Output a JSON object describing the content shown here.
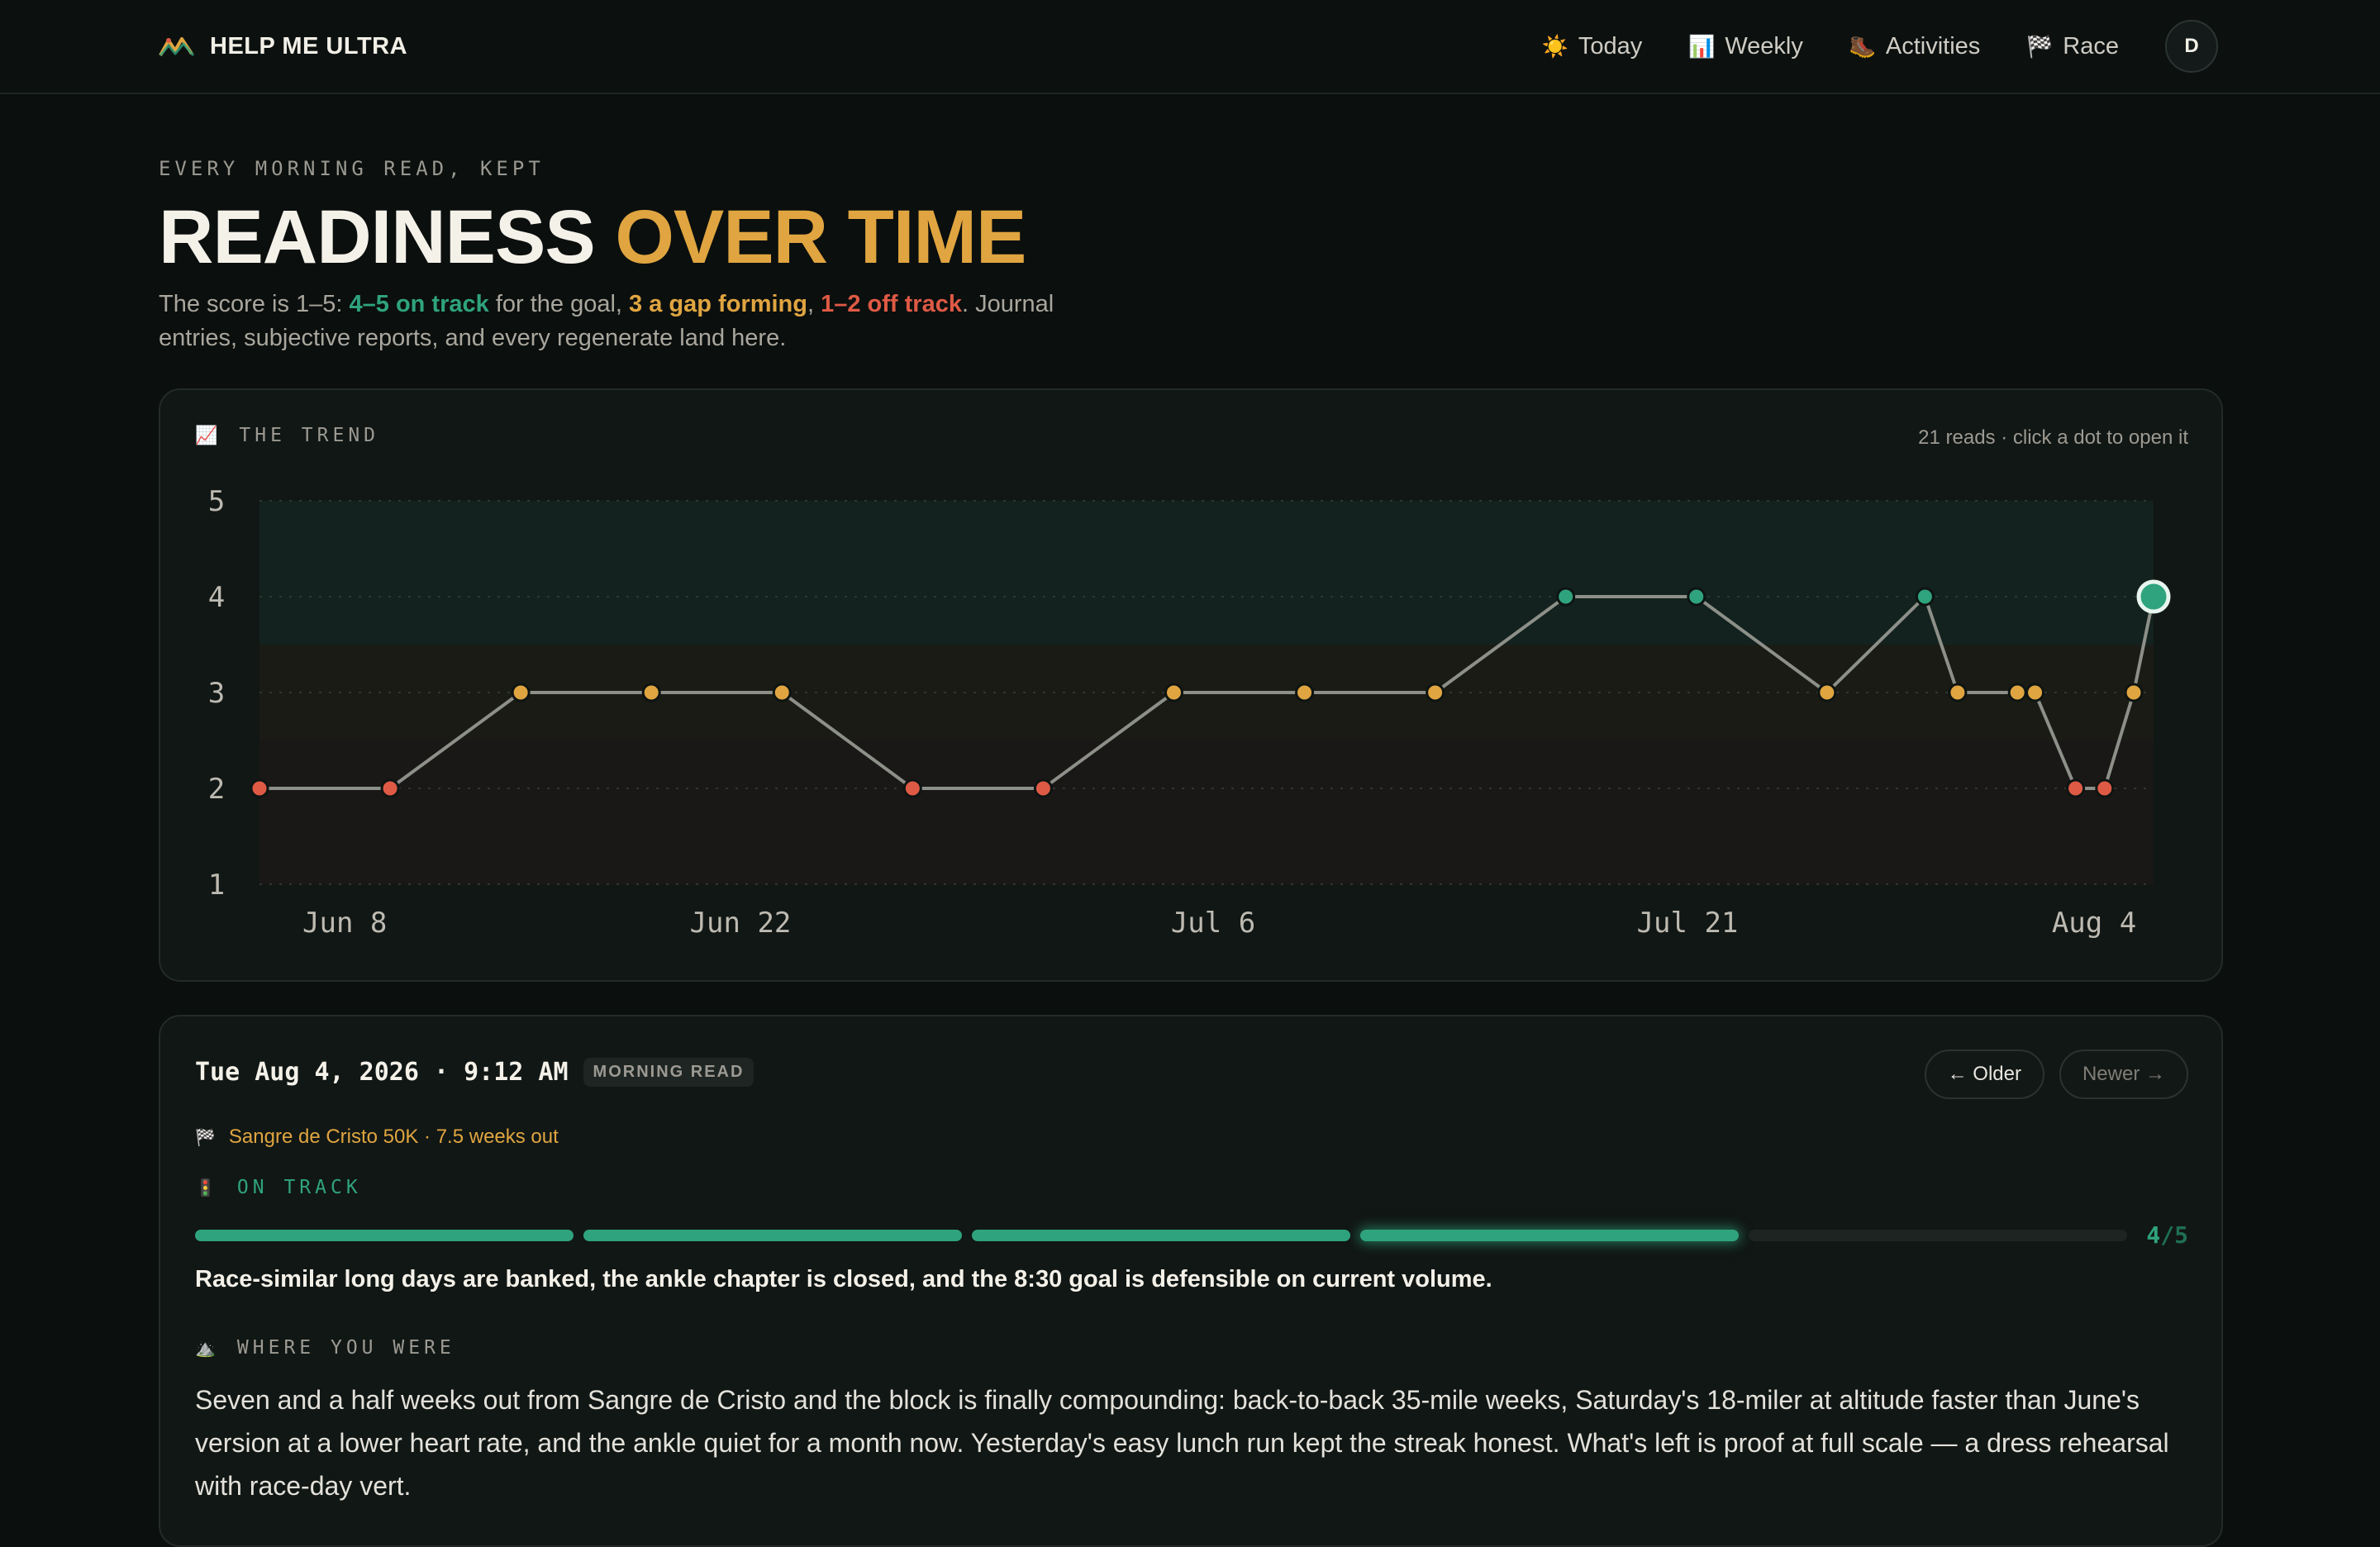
{
  "app": {
    "name": "HELP ME ULTRA",
    "nav": [
      {
        "label": "Today",
        "icon": "☀️"
      },
      {
        "label": "Weekly",
        "icon": "📊"
      },
      {
        "label": "Activities",
        "icon": "🥾"
      },
      {
        "label": "Race",
        "icon": "🏁"
      }
    ],
    "avatar_initial": "D"
  },
  "header": {
    "eyebrow": "EVERY MORNING READ, KEPT",
    "title_main": "READINESS",
    "title_accent": "OVER TIME",
    "lede": {
      "p1": "The score is 1–5: ",
      "on_track": "4–5 on track",
      "p2": " for the goal, ",
      "gap": "3 a gap forming",
      "p3": ", ",
      "off": "1–2 off track",
      "p4": ". Journal entries, subjective reports, and every regenerate land here."
    }
  },
  "trend": {
    "label": "THE TREND",
    "icon": "📈",
    "note": "21 reads · click a dot to open it"
  },
  "chart_data": {
    "type": "line",
    "title": "",
    "x_tick_labels": [
      "Jun 8",
      "Jun 22",
      "Jul 6",
      "Jul 21",
      "Aug 4"
    ],
    "y_ticks": [
      1,
      2,
      3,
      4,
      5
    ],
    "ylim": [
      1,
      5
    ],
    "xlim": [
      "2026-06-07",
      "2026-08-04"
    ],
    "grid": true,
    "bands": [
      {
        "range": [
          3.5,
          5
        ],
        "color": "#13221e"
      },
      {
        "range": [
          2.5,
          3.5
        ],
        "color": "#1a1b15"
      },
      {
        "range": [
          1,
          2.5
        ],
        "color": "#1a1816"
      }
    ],
    "colors": {
      "on_track": "#2fa37d",
      "gap": "#e0a540",
      "off": "#df5a45",
      "line": "#8d8f89"
    },
    "points": [
      {
        "date": "2026-06-07",
        "value": 2
      },
      {
        "date": "2026-06-11",
        "value": 2
      },
      {
        "date": "2026-06-15",
        "value": 3
      },
      {
        "date": "2026-06-19",
        "value": 3
      },
      {
        "date": "2026-06-23",
        "value": 3
      },
      {
        "date": "2026-06-27",
        "value": 2
      },
      {
        "date": "2026-07-01",
        "value": 2
      },
      {
        "date": "2026-07-05",
        "value": 3
      },
      {
        "date": "2026-07-09",
        "value": 3
      },
      {
        "date": "2026-07-13",
        "value": 3
      },
      {
        "date": "2026-07-17",
        "value": 4
      },
      {
        "date": "2026-07-21",
        "value": 4
      },
      {
        "date": "2026-07-25",
        "value": 3
      },
      {
        "date": "2026-07-28",
        "value": 4
      },
      {
        "date": "2026-07-29",
        "value": 3
      },
      {
        "date": "2026-07-31",
        "value": 3
      },
      {
        "date": "2026-07-31",
        "value": 3
      },
      {
        "date": "2026-08-02",
        "value": 2
      },
      {
        "date": "2026-08-03",
        "value": 2
      },
      {
        "date": "2026-08-04",
        "value": 3
      },
      {
        "date": "2026-08-04",
        "value": 4
      }
    ],
    "selected_index": 20
  },
  "detail": {
    "when": "Tue Aug 4, 2026 · 9:12 AM",
    "badge": "MORNING READ",
    "older": "← Older",
    "newer": "Newer →",
    "race_icon": "🏁",
    "race": "Sangre de Cristo 50K · 7.5 weeks out",
    "status_icon": "🚦",
    "status": "ON TRACK",
    "score": 4,
    "score_max": 5,
    "score_value": "4",
    "score_suffix": "/5",
    "summary": "Race-similar long days are banked, the ankle chapter is closed, and the 8:30 goal is defensible on current volume.",
    "where_icon": "⛰️",
    "where_label": "WHERE YOU WERE",
    "where_text": "Seven and a half weeks out from Sangre de Cristo and the block is finally compounding: back-to-back 35-mile weeks, Saturday's 18-miler at altitude faster than June's version at a lower heart rate, and the ankle quiet for a month now. Yesterday's easy lunch run kept the streak honest. What's left is proof at full scale — a dress rehearsal with race-day vert."
  }
}
